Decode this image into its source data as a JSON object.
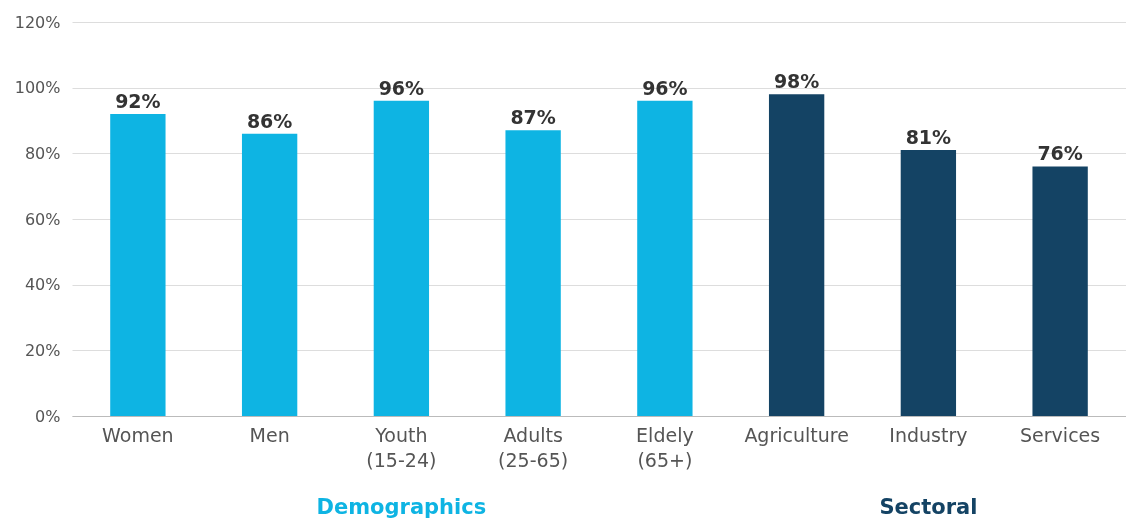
{
  "chart_data": {
    "type": "bar",
    "categories": [
      "Women",
      "Men",
      "Youth\n(15-24)",
      "Adults\n(25-65)",
      "Eldely\n(65+)",
      "Agriculture",
      "Industry",
      "Services"
    ],
    "series": [
      {
        "name": "Demographics",
        "color": "#0eb4e3",
        "values": [
          92,
          86,
          96,
          87,
          96,
          null,
          null,
          null
        ],
        "value_labels": [
          "92%",
          "86%",
          "96%",
          "87%",
          "96%",
          null,
          null,
          null
        ]
      },
      {
        "name": "Sectoral",
        "color": "#144364",
        "values": [
          null,
          null,
          null,
          null,
          null,
          98,
          81,
          76
        ],
        "value_labels": [
          null,
          null,
          null,
          null,
          null,
          "98%",
          "81%",
          "76%"
        ]
      }
    ],
    "ylim": [
      0,
      120
    ],
    "yticks": [
      {
        "value": 0,
        "label": "0%"
      },
      {
        "value": 20,
        "label": "20%"
      },
      {
        "value": 40,
        "label": "40%"
      },
      {
        "value": 60,
        "label": "60%"
      },
      {
        "value": 80,
        "label": "80%"
      },
      {
        "value": 100,
        "label": "100%"
      },
      {
        "value": 120,
        "label": "120%"
      }
    ],
    "grid": "y"
  }
}
